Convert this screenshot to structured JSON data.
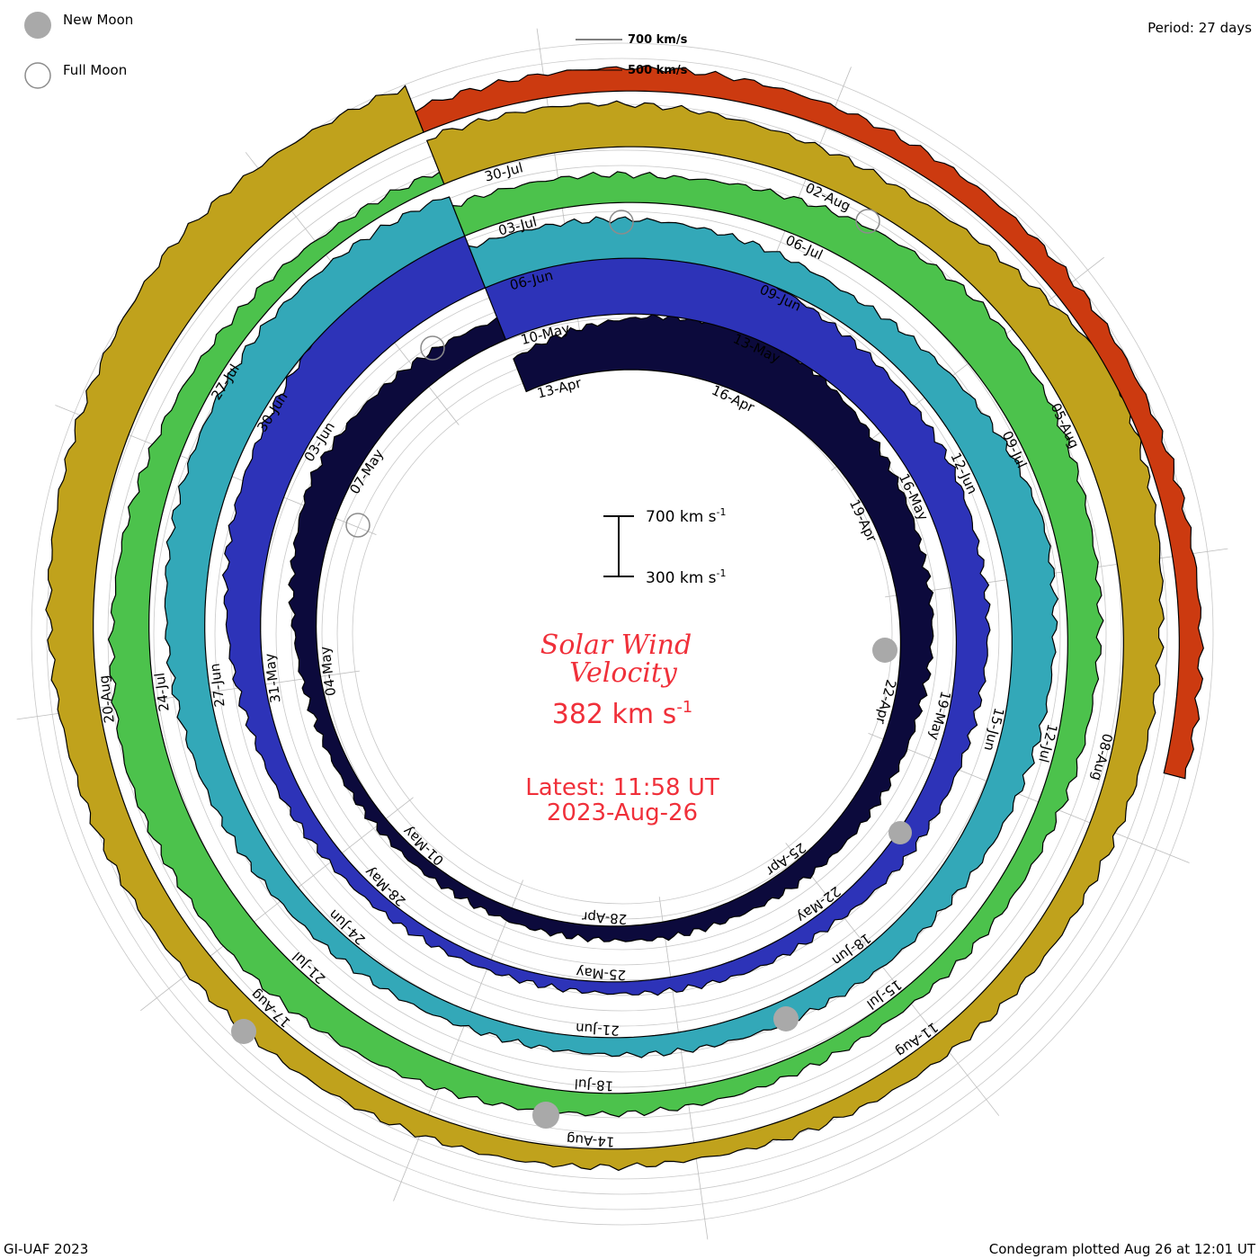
{
  "legend": {
    "new_moon": "New Moon",
    "full_moon": "Full Moon",
    "new_moon_color": "#a9a9a9",
    "full_moon_color": "#8c8c8c"
  },
  "period_label": "Period: 27 days",
  "footer_left": "GI-UAF 2023",
  "footer_right": "Condegram plotted Aug 26 at 12:01 UT",
  "center": {
    "title_line1": "Solar Wind",
    "title_line2": "Velocity",
    "current_value": "382",
    "current_unit": "km s",
    "current_unit_exp": "-1",
    "latest_line1": "Latest: 11:58 UT",
    "latest_line2": "2023-Aug-26",
    "text_color": "#f0303a"
  },
  "scale_bar": {
    "top": "700 km s",
    "top_exp": "-1",
    "bottom": "300 km s",
    "bottom_exp": "-1"
  },
  "ring_scale": {
    "label_700": "700 km/s",
    "label_500": "500 km/s"
  },
  "chart_data": {
    "type": "area",
    "period_days": 27,
    "y_units": "km/s",
    "rings": [
      {
        "color": "#0c0a3c",
        "speeds": [
          430,
          470,
          500,
          520,
          510,
          480,
          450,
          430,
          420,
          400,
          390,
          380,
          370,
          360,
          360,
          350,
          350,
          345,
          345,
          350,
          360,
          380,
          410,
          440,
          420,
          400,
          380
        ],
        "dates": [
          {
            "label": "13-Apr",
            "pos": 0.02
          },
          {
            "label": "16-Apr",
            "pos": 0.13
          },
          {
            "label": "19-Apr",
            "pos": 0.24
          },
          {
            "label": "22-Apr",
            "pos": 0.35
          },
          {
            "label": "25-Apr",
            "pos": 0.46
          },
          {
            "label": "28-Apr",
            "pos": 0.57
          },
          {
            "label": "01-May",
            "pos": 0.68
          },
          {
            "label": "04-May",
            "pos": 0.79
          },
          {
            "label": "07-May",
            "pos": 0.9
          }
        ]
      },
      {
        "color": "#2d33b8",
        "speeds": [
          620,
          600,
          560,
          520,
          480,
          460,
          450,
          430,
          420,
          400,
          390,
          380,
          360,
          360,
          350,
          340,
          340,
          345,
          355,
          370,
          390,
          420,
          450,
          470,
          500,
          560,
          600
        ],
        "dates": [
          {
            "label": "10-May",
            "pos": 0.02
          },
          {
            "label": "13-May",
            "pos": 0.13
          },
          {
            "label": "16-May",
            "pos": 0.24
          },
          {
            "label": "19-May",
            "pos": 0.35
          },
          {
            "label": "22-May",
            "pos": 0.46
          },
          {
            "label": "25-May",
            "pos": 0.57
          },
          {
            "label": "28-May",
            "pos": 0.68
          },
          {
            "label": "31-May",
            "pos": 0.79
          },
          {
            "label": "03-Jun",
            "pos": 0.9
          }
        ]
      },
      {
        "color": "#33a8b8",
        "speeds": [
          460,
          450,
          440,
          420,
          400,
          420,
          450,
          480,
          460,
          440,
          420,
          400,
          390,
          380,
          370,
          360,
          360,
          370,
          380,
          400,
          420,
          440,
          460,
          470,
          480,
          470,
          460
        ],
        "dates": [
          {
            "label": "06-Jun",
            "pos": 0.02
          },
          {
            "label": "09-Jun",
            "pos": 0.13
          },
          {
            "label": "12-Jun",
            "pos": 0.24
          },
          {
            "label": "15-Jun",
            "pos": 0.35
          },
          {
            "label": "18-Jun",
            "pos": 0.46
          },
          {
            "label": "21-Jun",
            "pos": 0.57
          },
          {
            "label": "24-Jun",
            "pos": 0.68
          },
          {
            "label": "27-Jun",
            "pos": 0.79
          },
          {
            "label": "30-Jun",
            "pos": 0.9
          }
        ]
      },
      {
        "color": "#4cc24c",
        "speeds": [
          420,
          410,
          400,
          420,
          450,
          480,
          470,
          440,
          420,
          400,
          380,
          370,
          360,
          360,
          370,
          380,
          400,
          420,
          440,
          450,
          460,
          440,
          420,
          400,
          380,
          360,
          350
        ],
        "dates": [
          {
            "label": "03-Jul",
            "pos": 0.02
          },
          {
            "label": "06-Jul",
            "pos": 0.13
          },
          {
            "label": "09-Jul",
            "pos": 0.24
          },
          {
            "label": "12-Jul",
            "pos": 0.35
          },
          {
            "label": "15-Jul",
            "pos": 0.46
          },
          {
            "label": "18-Jul",
            "pos": 0.57
          },
          {
            "label": "21-Jul",
            "pos": 0.68
          },
          {
            "label": "24-Jul",
            "pos": 0.79
          },
          {
            "label": "27-Jul",
            "pos": 0.9
          }
        ]
      },
      {
        "color": "#c0a21c",
        "speeds": [
          480,
          470,
          450,
          430,
          420,
          450,
          520,
          480,
          440,
          420,
          400,
          390,
          380,
          370,
          360,
          370,
          380,
          390,
          400,
          420,
          440,
          460,
          480,
          500,
          520,
          500,
          480
        ],
        "dates": [
          {
            "label": "30-Jul",
            "pos": 0.02
          },
          {
            "label": "02-Aug",
            "pos": 0.13
          },
          {
            "label": "05-Aug",
            "pos": 0.24
          },
          {
            "label": "08-Aug",
            "pos": 0.35
          },
          {
            "label": "11-Aug",
            "pos": 0.46
          },
          {
            "label": "14-Aug",
            "pos": 0.57
          },
          {
            "label": "17-Aug",
            "pos": 0.68
          },
          {
            "label": "20-Aug",
            "pos": 0.79
          }
        ]
      },
      {
        "color": "#cc3a10",
        "speeds": [
          390,
          385,
          380,
          380,
          378,
          382
        ],
        "dates": []
      }
    ]
  }
}
